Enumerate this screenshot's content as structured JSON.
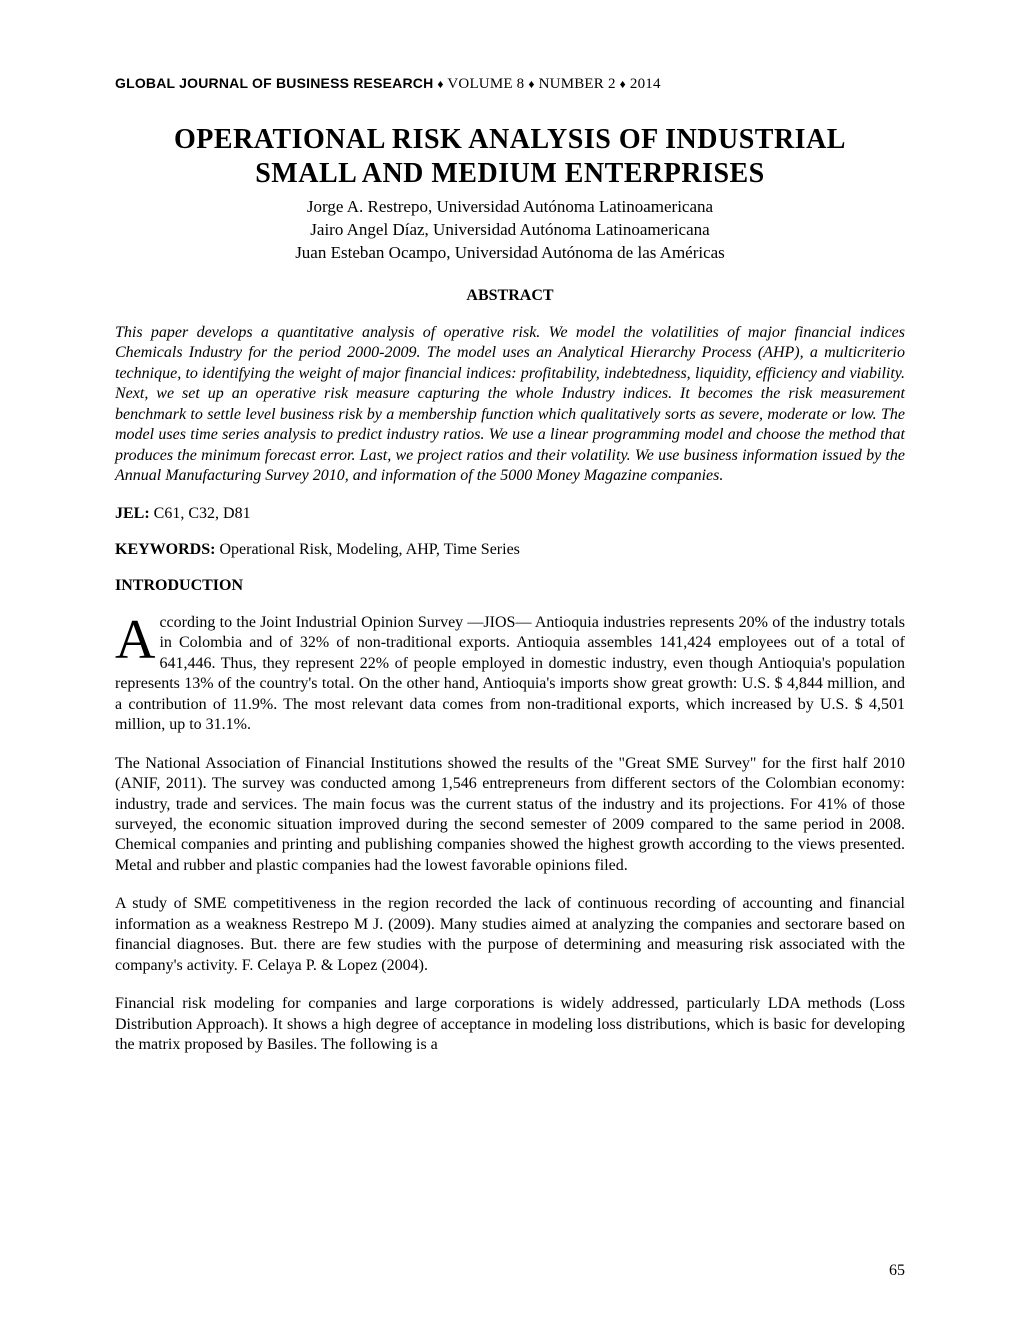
{
  "header": {
    "journal_name": "GLOBAL JOURNAL OF BUSINESS RESEARCH",
    "separator": "♦",
    "volume_label": "VOLUME 8",
    "number_label": "NUMBER 2",
    "year": "2014"
  },
  "title_line1": "OPERATIONAL RISK ANALYSIS OF INDUSTRIAL",
  "title_line2": "SMALL AND MEDIUM ENTERPRISES",
  "authors": {
    "line1": "Jorge A. Restrepo, Universidad Autónoma Latinoamericana",
    "line2": "Jairo Angel Díaz, Universidad Autónoma Latinoamericana",
    "line3": "Juan Esteban Ocampo, Universidad Autónoma de las Américas"
  },
  "abstract": {
    "heading": "ABSTRACT",
    "text": "This paper develops a quantitative analysis of operative risk. We model the volatilities of major financial indices Chemicals Industry for the period 2000-2009. The model uses an Analytical Hierarchy Process (AHP), a multicriterio technique, to identifying the weight of major financial indices: profitability, indebtedness, liquidity, efficiency and viability. Next, we set up an operative risk measure capturing the whole Industry indices. It becomes the risk measurement benchmark to settle level business risk by a membership function which qualitatively sorts as severe, moderate or low. The model uses time series analysis to predict industry ratios. We use a linear programming model and choose the method that produces the minimum forecast error. Last, we project ratios and their volatility. We use business information issued by the Annual Manufacturing Survey 2010, and information of the 5000 Money Magazine companies."
  },
  "jel": {
    "label": "JEL:",
    "codes": "C61, C32, D81"
  },
  "keywords": {
    "label": "KEYWORDS:",
    "text": "Operational Risk, Modeling, AHP, Time Series"
  },
  "introduction": {
    "heading": "INTRODUCTION",
    "dropcap": "A",
    "para1_rest": "ccording to the Joint Industrial Opinion Survey —JIOS— Antioquia industries represents 20% of the industry totals in Colombia and of 32% of non-traditional exports. Antioquia assembles 141,424 employees out of a total of 641,446.  Thus, they represent 22% of people employed in domestic industry, even though Antioquia's population represents 13% of the country's total.  On the other hand, Antioquia's imports show great growth: U.S. $ 4,844 million, and a contribution of 11.9%. The most relevant data comes from non-traditional exports, which increased by U.S. $ 4,501 million, up to 31.1%.",
    "para2": "The National Association of Financial Institutions showed the results of the \"Great SME Survey\" for the first half 2010 (ANIF, 2011). The survey was conducted among 1,546 entrepreneurs from different sectors of the Colombian economy: industry, trade and services. The main focus was the current status of the industry and its projections. For 41% of those surveyed, the economic situation improved during the second semester of 2009 compared to the same period in 2008. Chemical companies and printing and publishing companies showed the highest growth according to the views presented. Metal and rubber and plastic companies had the lowest favorable opinions filed.",
    "para3": "A study of SME competitiveness in the region recorded the lack of continuous recording of accounting and financial information as a weakness Restrepo M J. (2009). Many studies aimed at analyzing the companies and sectorare based on financial diagnoses. But. there are few studies with the purpose of determining and measuring risk associated with the company's activity. F. Celaya P. & Lopez (2004).",
    "para4": "Financial risk modeling for companies and large corporations is widely addressed, particularly LDA methods (Loss Distribution Approach). It shows a high degree of acceptance in modeling loss distributions, which is basic for developing the matrix proposed by Basiles. The following is a"
  },
  "page_number": "65",
  "colors": {
    "background": "#ffffff",
    "text": "#000000"
  }
}
